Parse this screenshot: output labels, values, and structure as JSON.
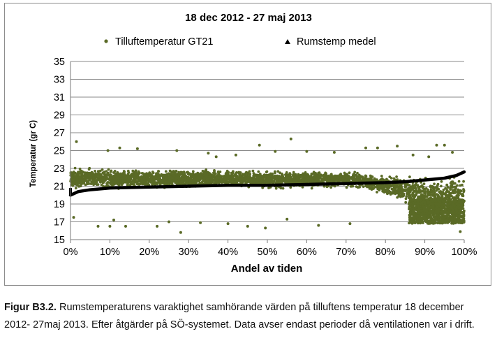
{
  "chart_data": {
    "type": "scatter",
    "title": "18 dec 2012 - 27 maj 2013",
    "xlabel": "Andel av tiden",
    "ylabel": "Temperatur (gr C)",
    "xlim": [
      0,
      100
    ],
    "ylim": [
      15,
      35
    ],
    "x_ticks": [
      "0%",
      "10%",
      "20%",
      "30%",
      "40%",
      "50%",
      "60%",
      "70%",
      "80%",
      "90%",
      "100%"
    ],
    "y_ticks": [
      "15",
      "17",
      "19",
      "21",
      "23",
      "25",
      "27",
      "29",
      "31",
      "33",
      "35"
    ],
    "grid": "horizontal",
    "legend_position": "top",
    "series": [
      {
        "name": "Tilluftemperatur GT21",
        "marker": "dot",
        "color": "#5a6a26",
        "band": {
          "x": [
            0,
            10,
            20,
            30,
            40,
            50,
            60,
            70,
            75,
            80,
            85,
            88,
            90,
            95,
            100
          ],
          "low": [
            20.6,
            20.4,
            20.6,
            20.6,
            20.8,
            20.6,
            20.6,
            20.8,
            20.5,
            19.8,
            19.0,
            18.0,
            17.0,
            17.0,
            17.0
          ],
          "high": [
            23.2,
            23.2,
            23.0,
            23.0,
            23.0,
            22.8,
            22.8,
            22.8,
            22.6,
            22.4,
            22.4,
            22.4,
            22.4,
            22.4,
            22.6
          ],
          "low_cluster": {
            "x": [
              86,
              100
            ],
            "y": [
              16.8,
              19.5
            ]
          }
        },
        "outliers": [
          [
            0.8,
            17.5
          ],
          [
            1.5,
            26.0
          ],
          [
            7,
            16.5
          ],
          [
            9.5,
            25.0
          ],
          [
            10,
            16.5
          ],
          [
            11,
            17.2
          ],
          [
            12.5,
            25.3
          ],
          [
            14,
            16.5
          ],
          [
            17,
            25.2
          ],
          [
            22,
            16.5
          ],
          [
            25,
            17.0
          ],
          [
            27,
            25.0
          ],
          [
            28,
            15.8
          ],
          [
            33,
            16.9
          ],
          [
            35,
            24.7
          ],
          [
            37,
            24.3
          ],
          [
            40,
            16.8
          ],
          [
            42,
            24.5
          ],
          [
            45,
            16.5
          ],
          [
            48,
            25.6
          ],
          [
            49.5,
            16.3
          ],
          [
            52,
            24.9
          ],
          [
            55,
            17.3
          ],
          [
            56,
            26.3
          ],
          [
            60,
            24.9
          ],
          [
            63,
            16.6
          ],
          [
            67,
            24.8
          ],
          [
            71,
            16.8
          ],
          [
            75,
            25.3
          ],
          [
            78,
            25.3
          ],
          [
            83,
            25.5
          ],
          [
            87,
            24.5
          ],
          [
            91,
            24.3
          ],
          [
            93,
            25.6
          ],
          [
            95,
            25.6
          ],
          [
            97,
            24.8
          ],
          [
            99,
            15.9
          ]
        ]
      },
      {
        "name": "Rumstemp medel",
        "marker": "triangle",
        "color": "#000000",
        "x": [
          0,
          2,
          5,
          10,
          20,
          30,
          40,
          50,
          60,
          70,
          80,
          85,
          90,
          95,
          98,
          100
        ],
        "y": [
          20.0,
          20.4,
          20.6,
          20.8,
          20.9,
          21.0,
          21.1,
          21.1,
          21.2,
          21.3,
          21.4,
          21.5,
          21.7,
          21.9,
          22.2,
          22.6
        ]
      }
    ]
  },
  "caption": {
    "figure_label": "Figur B3.2.",
    "text": "Rumstemperaturens varaktighet samhörande värden på tilluftens temperatur 18 december 2012- 27maj 2013. Efter åtgärder på SÖ-systemet. Data avser endast perioder då ventilationen var i drift."
  }
}
